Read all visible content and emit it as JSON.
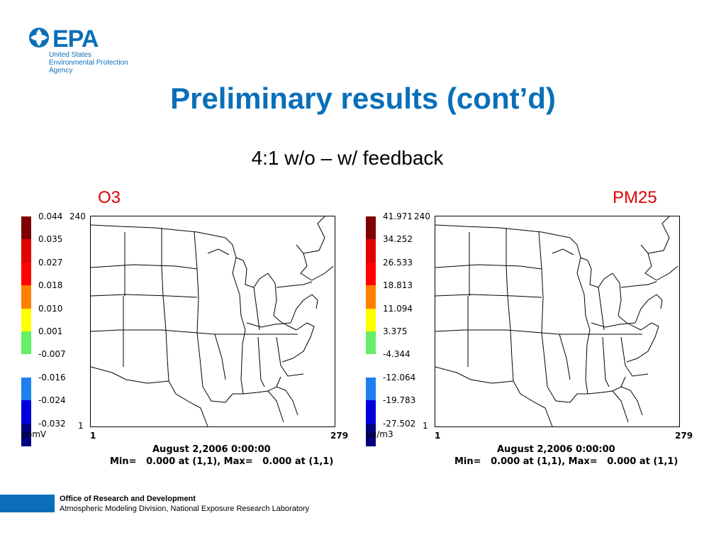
{
  "logo": {
    "word": "EPA",
    "line1": "United States",
    "line2": "Environmental Protection",
    "line3": "Agency",
    "color": "#0a6fb8"
  },
  "title": "Preliminary results (cont’d)",
  "subtitle": "4:1 w/o – w/ feedback",
  "panels": [
    {
      "label": "O3",
      "unit": "ppmV",
      "colorbar_labels": [
        "0.044",
        "0.035",
        "0.027",
        "0.018",
        "0.010",
        "0.001",
        "-0.007",
        "-0.016",
        "-0.024",
        "-0.032"
      ],
      "y_top": "240",
      "y_bottom": "1",
      "x_left": "1",
      "x_right": "279",
      "date": "August 2,2006 0:00:00",
      "minmax": "Min=   0.000 at (1,1), Max=   0.000 at (1,1)"
    },
    {
      "label": "PM25",
      "unit": "ug/m3",
      "colorbar_labels": [
        "41.971",
        "34.252",
        "26.533",
        "18.813",
        "11.094",
        "3.375",
        "-4.344",
        "-12.064",
        "-19.783",
        "-27.502"
      ],
      "y_top": "240",
      "y_bottom": "1",
      "x_left": "1",
      "x_right": "279",
      "date": "August 2,2006 0:00:00",
      "minmax": "Min=   0.000 at (1,1), Max=   0.000 at (1,1)"
    }
  ],
  "colorbar_colors": [
    "#800000",
    "#e00000",
    "#ff0000",
    "#ff8000",
    "#ffff00",
    "#66ee66",
    "#ffffff",
    "#1e7ff0",
    "#0000dd",
    "#000080"
  ],
  "footer": {
    "line1": "Office of Research and Development",
    "line2": "Atmospheric Modeling Division, National Exposure Research Laboratory",
    "color": "#0a6fb8"
  }
}
